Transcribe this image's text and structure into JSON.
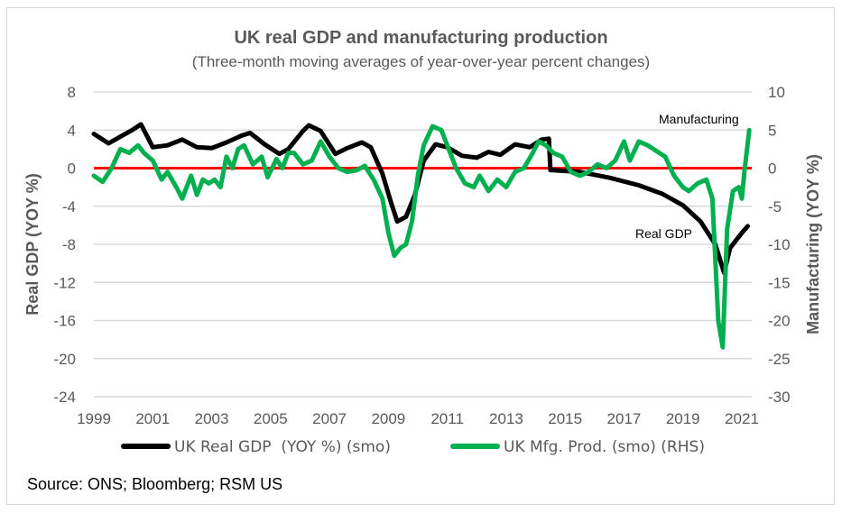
{
  "chart_data": {
    "type": "line",
    "title": "UK real GDP and manufacturing production",
    "subtitle": "(Three-month moving averages of year-over-year percent changes)",
    "xlabel": "",
    "ylabel": "Real GDP (YOY %)",
    "y2label": "Manufacturing (YOY %)",
    "xlim": [
      1999,
      2021.3
    ],
    "ylim": [
      -24,
      8
    ],
    "y2lim": [
      -30,
      10
    ],
    "grid": true,
    "legend_position": "bottom",
    "x_ticks": [
      "1999",
      "2001",
      "2003",
      "2005",
      "2007",
      "2009",
      "2011",
      "2013",
      "2015",
      "2017",
      "2019",
      "2021"
    ],
    "y_ticks": [
      "8",
      "4",
      "0",
      "-4",
      "-8",
      "-12",
      "-16",
      "-20",
      "-24"
    ],
    "y2_ticks": [
      "10",
      "5",
      "0",
      "-5",
      "-10",
      "-15",
      "-20",
      "-25",
      "-30"
    ],
    "reference_line": {
      "axis": "left",
      "value": 0,
      "color": "#ff0000"
    },
    "annotations": [
      {
        "text": "Manufacturing",
        "series": "UK Mfg. Prod. (smo) (RHS)"
      },
      {
        "text": "Real GDP",
        "series": "UK Real GDP  (YOY %) (smo)"
      }
    ],
    "series": [
      {
        "name": "UK Real GDP  (YOY %) (smo)",
        "axis": "left",
        "color": "#000000",
        "x": [
          1999.0,
          1999.5,
          1999.9,
          2000.3,
          2000.6,
          2001.0,
          2001.5,
          2002.0,
          2002.5,
          2003.0,
          2003.5,
          2004.0,
          2004.3,
          2004.8,
          2005.3,
          2005.6,
          2006.1,
          2006.3,
          2006.7,
          2007.2,
          2007.6,
          2008.1,
          2008.4,
          2008.8,
          2009.1,
          2009.3,
          2009.6,
          2009.9,
          2010.2,
          2010.6,
          2011.0,
          2011.5,
          2012.0,
          2012.4,
          2012.8,
          2013.3,
          2013.8,
          2014.2,
          2014.45,
          2014.5,
          2015.5,
          2016.5,
          2017.5,
          2018.3,
          2019.0,
          2019.6,
          2020.1,
          2020.4,
          2020.6,
          2021.0,
          2021.2
        ],
        "values": [
          3.6,
          2.6,
          3.3,
          4.0,
          4.6,
          2.2,
          2.4,
          3.0,
          2.2,
          2.1,
          2.7,
          3.4,
          3.7,
          2.5,
          1.5,
          2.0,
          3.9,
          4.5,
          3.9,
          1.5,
          2.1,
          2.7,
          2.2,
          -0.6,
          -3.7,
          -5.6,
          -5.1,
          -2.8,
          0.8,
          2.5,
          2.2,
          1.3,
          1.1,
          1.7,
          1.4,
          2.5,
          2.2,
          3.0,
          3.1,
          -0.2,
          -0.4,
          -1.0,
          -1.8,
          -2.7,
          -3.9,
          -5.6,
          -8.0,
          -11.0,
          -8.4,
          -6.8,
          -6.1
        ]
      },
      {
        "name": "UK Mfg. Prod. (smo) (RHS)",
        "axis": "right",
        "color": "#00b050",
        "x": [
          1999.0,
          1999.3,
          1999.6,
          1999.9,
          2000.2,
          2000.5,
          2000.7,
          2001.0,
          2001.3,
          2001.5,
          2001.8,
          2002.0,
          2002.3,
          2002.5,
          2002.7,
          2002.9,
          2003.1,
          2003.3,
          2003.5,
          2003.7,
          2003.9,
          2004.1,
          2004.4,
          2004.7,
          2004.9,
          2005.2,
          2005.4,
          2005.6,
          2005.8,
          2006.1,
          2006.4,
          2006.7,
          2007.0,
          2007.3,
          2007.6,
          2007.9,
          2008.2,
          2008.5,
          2008.8,
          2009.0,
          2009.2,
          2009.4,
          2009.6,
          2009.8,
          2010.0,
          2010.2,
          2010.5,
          2010.8,
          2011.0,
          2011.3,
          2011.6,
          2011.9,
          2012.1,
          2012.4,
          2012.7,
          2013.0,
          2013.3,
          2013.6,
          2013.9,
          2014.1,
          2014.35,
          2014.6,
          2014.9,
          2015.2,
          2015.5,
          2015.8,
          2016.1,
          2016.4,
          2016.7,
          2017.0,
          2017.2,
          2017.5,
          2017.8,
          2018.0,
          2018.4,
          2018.7,
          2019.0,
          2019.2,
          2019.5,
          2019.8,
          2020.0,
          2020.2,
          2020.35,
          2020.5,
          2020.7,
          2020.9,
          2021.0,
          2021.1,
          2021.25
        ],
        "values": [
          -1.0,
          -1.8,
          0.0,
          2.5,
          2.0,
          3.0,
          2.0,
          1.0,
          -1.5,
          -0.5,
          -2.5,
          -4.0,
          -1.0,
          -3.5,
          -1.5,
          -2.0,
          -1.5,
          -2.5,
          1.5,
          0.0,
          2.5,
          3.0,
          0.5,
          1.5,
          -1.2,
          1.2,
          0.0,
          2.0,
          2.0,
          0.5,
          1.0,
          3.5,
          1.5,
          0.0,
          -0.5,
          -0.3,
          0.3,
          -1.5,
          -4.0,
          -8.5,
          -11.5,
          -10.5,
          -10.0,
          -7.0,
          -1.0,
          3.0,
          5.5,
          5.0,
          3.0,
          0.0,
          -2.0,
          -2.5,
          -1.0,
          -3.0,
          -1.5,
          -2.5,
          -0.5,
          0.0,
          2.0,
          3.5,
          3.0,
          2.0,
          1.5,
          -0.5,
          -1.0,
          -0.5,
          0.5,
          0.0,
          1.0,
          3.5,
          1.0,
          3.5,
          3.0,
          2.5,
          1.5,
          -1.0,
          -2.5,
          -3.0,
          -2.0,
          -1.5,
          -4.0,
          -20.0,
          -23.5,
          -8.0,
          -3.0,
          -2.5,
          -4.0,
          0.0,
          5.0
        ]
      }
    ]
  },
  "source": "Source: ONS; Bloomberg; RSM US"
}
